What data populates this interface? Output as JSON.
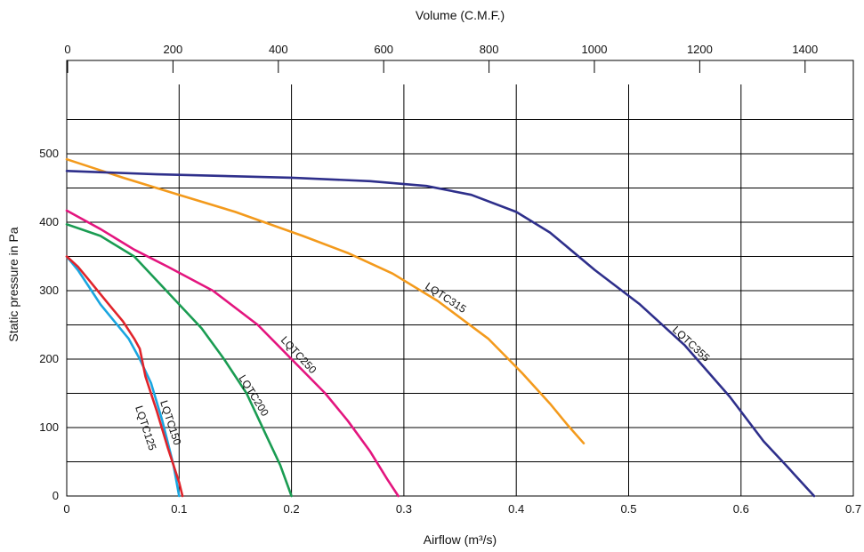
{
  "chart_data": {
    "type": "line",
    "top_axis": {
      "label": "Volume (C.M.F.)",
      "range": [
        0,
        1500
      ],
      "ticks": [
        "0",
        "200",
        "400",
        "600",
        "800",
        "1000",
        "1200",
        "1400"
      ],
      "tick_values": [
        0,
        200,
        400,
        600,
        800,
        1000,
        1200,
        1400
      ]
    },
    "xlabel": "Airflow (m³/s)",
    "xlim": [
      0,
      0.7
    ],
    "x_ticks": [
      "0",
      "0.1",
      "0.2",
      "0.3",
      "0.4",
      "0.5",
      "0.6",
      "0.7"
    ],
    "x_tick_values": [
      0,
      0.1,
      0.2,
      0.3,
      0.4,
      0.5,
      0.6,
      0.7
    ],
    "ylabel": "Static pressure in Pa",
    "ylim": [
      0,
      560
    ],
    "y_ticks": [
      "0",
      "100",
      "200",
      "300",
      "400",
      "500"
    ],
    "y_tick_values": [
      0,
      100,
      200,
      300,
      400,
      500
    ],
    "grid": true,
    "series": [
      {
        "name": "LQTC125",
        "color": "#1aa6e0",
        "x": [
          0,
          0.01,
          0.02,
          0.03,
          0.04,
          0.055,
          0.065,
          0.075,
          0.085,
          0.095,
          0.1
        ],
        "y": [
          350,
          330,
          305,
          280,
          260,
          230,
          200,
          165,
          110,
          45,
          0
        ]
      },
      {
        "name": "LQTC150",
        "color": "#e0242b",
        "x": [
          0,
          0.01,
          0.02,
          0.03,
          0.04,
          0.05,
          0.06,
          0.065,
          0.07,
          0.08,
          0.09,
          0.1,
          0.103
        ],
        "y": [
          350,
          335,
          315,
          295,
          275,
          255,
          230,
          215,
          175,
          125,
          70,
          20,
          0
        ]
      },
      {
        "name": "LQTC200",
        "color": "#1a9c52",
        "x": [
          0,
          0.03,
          0.06,
          0.08,
          0.1,
          0.12,
          0.14,
          0.16,
          0.17,
          0.18,
          0.19,
          0.2
        ],
        "y": [
          397,
          380,
          350,
          315,
          280,
          245,
          200,
          150,
          115,
          80,
          45,
          0
        ]
      },
      {
        "name": "LQTC250",
        "color": "#e3157e",
        "x": [
          0,
          0.03,
          0.06,
          0.09,
          0.13,
          0.17,
          0.2,
          0.23,
          0.25,
          0.27,
          0.285,
          0.295
        ],
        "y": [
          417,
          390,
          360,
          335,
          300,
          250,
          200,
          150,
          110,
          65,
          25,
          0
        ]
      },
      {
        "name": "LQTC315",
        "color": "#f39a1c",
        "x": [
          0,
          0.05,
          0.1,
          0.15,
          0.21,
          0.25,
          0.29,
          0.33,
          0.375,
          0.405,
          0.43,
          0.445,
          0.46
        ],
        "y": [
          492,
          465,
          440,
          415,
          380,
          355,
          325,
          285,
          230,
          180,
          135,
          105,
          77
        ]
      },
      {
        "name": "LQTC355",
        "color": "#2e2f8b",
        "x": [
          0,
          0.08,
          0.2,
          0.27,
          0.32,
          0.36,
          0.4,
          0.43,
          0.47,
          0.51,
          0.55,
          0.59,
          0.62,
          0.64,
          0.665
        ],
        "y": [
          475,
          470,
          465,
          460,
          453,
          440,
          415,
          385,
          330,
          280,
          220,
          145,
          80,
          45,
          0
        ]
      }
    ]
  }
}
